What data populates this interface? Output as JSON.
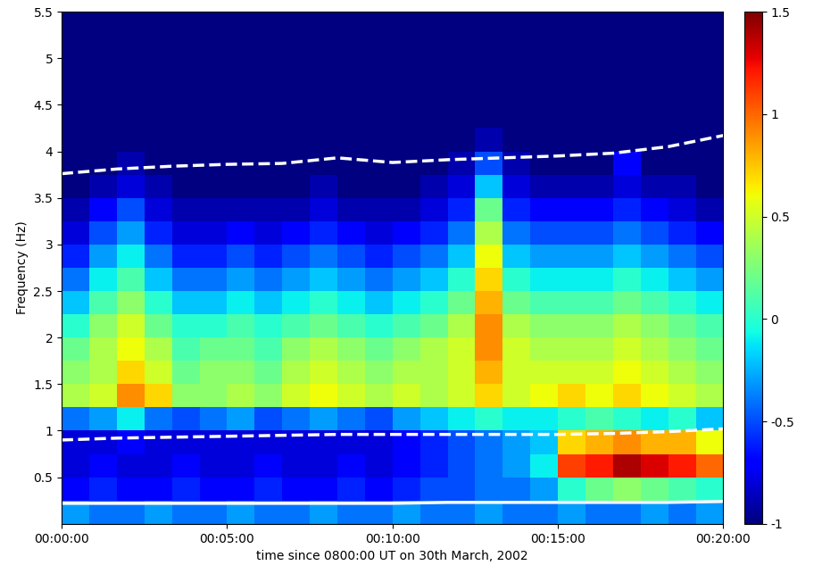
{
  "chart_data": {
    "type": "heatmap",
    "x_label": "time since 0800:00 UT on 30th March, 2002",
    "y_label": "Frequency (Hz)",
    "xlim": [
      0,
      1200
    ],
    "xticks": [
      {
        "value": 0,
        "label": "00:00:00"
      },
      {
        "value": 300,
        "label": "00:05:00"
      },
      {
        "value": 600,
        "label": "00:10:00"
      },
      {
        "value": 900,
        "label": "00:15:00"
      },
      {
        "value": 1200,
        "label": "00:20:00"
      }
    ],
    "ylim": [
      0,
      5.5
    ],
    "yticks": [
      0.5,
      1,
      1.5,
      2,
      2.5,
      3,
      3.5,
      4,
      4.5,
      5,
      5.5
    ],
    "time_edges": [
      0,
      50,
      100,
      150,
      200,
      250,
      300,
      350,
      400,
      450,
      500,
      550,
      600,
      650,
      700,
      750,
      800,
      850,
      900,
      950,
      1000,
      1050,
      1100,
      1150,
      1200
    ],
    "frequency_edges": [
      0,
      0.25,
      0.5,
      0.75,
      1,
      1.25,
      1.5,
      1.75,
      2,
      2.25,
      2.5,
      2.75,
      3,
      3.25,
      3.5,
      3.75,
      4,
      4.25,
      4.5,
      4.75,
      5,
      5.25,
      5.5
    ],
    "cells": [
      [
        -0.3,
        -0.4,
        -0.4,
        -0.3,
        -0.4,
        -0.4,
        -0.3,
        -0.4,
        -0.4,
        -0.3,
        -0.4,
        -0.4,
        -0.3,
        -0.4,
        -0.4,
        -0.3,
        -0.4,
        -0.4,
        -0.3,
        -0.4,
        -0.4,
        -0.3,
        -0.4,
        -0.3
      ],
      [
        -0.7,
        -0.6,
        -0.7,
        -0.7,
        -0.6,
        -0.7,
        -0.7,
        -0.6,
        -0.7,
        -0.7,
        -0.6,
        -0.7,
        -0.6,
        -0.5,
        -0.5,
        -0.4,
        -0.4,
        -0.3,
        0.0,
        0.2,
        0.3,
        0.2,
        0.1,
        0.0
      ],
      [
        -0.8,
        -0.7,
        -0.8,
        -0.8,
        -0.7,
        -0.8,
        -0.8,
        -0.7,
        -0.8,
        -0.8,
        -0.7,
        -0.8,
        -0.7,
        -0.6,
        -0.5,
        -0.4,
        -0.3,
        -0.1,
        1.1,
        1.2,
        1.4,
        1.3,
        1.2,
        1.0
      ],
      [
        -0.8,
        -0.8,
        -0.7,
        -0.8,
        -0.8,
        -0.8,
        -0.8,
        -0.8,
        -0.8,
        -0.8,
        -0.8,
        -0.8,
        -0.7,
        -0.6,
        -0.5,
        -0.4,
        -0.3,
        -0.2,
        0.7,
        0.8,
        0.9,
        0.8,
        0.8,
        0.6
      ],
      [
        -0.4,
        -0.3,
        -0.1,
        -0.4,
        -0.5,
        -0.4,
        -0.3,
        -0.5,
        -0.4,
        -0.3,
        -0.4,
        -0.5,
        -0.3,
        -0.2,
        -0.1,
        0.0,
        -0.1,
        -0.1,
        0.0,
        0.1,
        0.0,
        -0.1,
        0.0,
        -0.2
      ],
      [
        0.4,
        0.5,
        0.9,
        0.7,
        0.3,
        0.3,
        0.4,
        0.3,
        0.5,
        0.6,
        0.5,
        0.4,
        0.5,
        0.4,
        0.5,
        0.7,
        0.5,
        0.6,
        0.7,
        0.6,
        0.7,
        0.6,
        0.5,
        0.4
      ],
      [
        0.3,
        0.4,
        0.7,
        0.5,
        0.2,
        0.3,
        0.3,
        0.2,
        0.4,
        0.5,
        0.4,
        0.3,
        0.4,
        0.4,
        0.5,
        0.8,
        0.5,
        0.5,
        0.5,
        0.5,
        0.6,
        0.5,
        0.4,
        0.3
      ],
      [
        0.2,
        0.4,
        0.6,
        0.4,
        0.1,
        0.2,
        0.2,
        0.1,
        0.3,
        0.4,
        0.3,
        0.2,
        0.3,
        0.4,
        0.5,
        0.9,
        0.5,
        0.4,
        0.4,
        0.4,
        0.5,
        0.4,
        0.3,
        0.2
      ],
      [
        0.0,
        0.3,
        0.5,
        0.2,
        0.0,
        0.0,
        0.1,
        0.0,
        0.1,
        0.2,
        0.1,
        0.0,
        0.1,
        0.2,
        0.4,
        0.9,
        0.4,
        0.3,
        0.3,
        0.3,
        0.4,
        0.3,
        0.2,
        0.1
      ],
      [
        -0.2,
        0.1,
        0.3,
        0.0,
        -0.2,
        -0.2,
        -0.1,
        -0.2,
        -0.1,
        0.0,
        -0.1,
        -0.2,
        -0.1,
        0.0,
        0.2,
        0.8,
        0.2,
        0.1,
        0.1,
        0.1,
        0.2,
        0.1,
        0.0,
        -0.1
      ],
      [
        -0.4,
        -0.1,
        0.1,
        -0.2,
        -0.4,
        -0.4,
        -0.3,
        -0.4,
        -0.3,
        -0.2,
        -0.3,
        -0.4,
        -0.3,
        -0.2,
        0.0,
        0.7,
        0.0,
        -0.1,
        -0.1,
        -0.1,
        0.0,
        -0.1,
        -0.2,
        -0.3
      ],
      [
        -0.6,
        -0.3,
        -0.1,
        -0.4,
        -0.6,
        -0.6,
        -0.5,
        -0.6,
        -0.5,
        -0.4,
        -0.5,
        -0.6,
        -0.5,
        -0.4,
        -0.2,
        0.6,
        -0.2,
        -0.3,
        -0.3,
        -0.3,
        -0.2,
        -0.3,
        -0.4,
        -0.5
      ],
      [
        -0.8,
        -0.5,
        -0.3,
        -0.6,
        -0.8,
        -0.8,
        -0.7,
        -0.8,
        -0.7,
        -0.6,
        -0.7,
        -0.8,
        -0.7,
        -0.6,
        -0.4,
        0.4,
        -0.4,
        -0.5,
        -0.5,
        -0.5,
        -0.4,
        -0.5,
        -0.6,
        -0.7
      ],
      [
        -0.9,
        -0.7,
        -0.5,
        -0.8,
        -0.9,
        -0.9,
        -0.9,
        -0.9,
        -0.9,
        -0.8,
        -0.9,
        -0.9,
        -0.9,
        -0.8,
        -0.6,
        0.2,
        -0.6,
        -0.7,
        -0.7,
        -0.7,
        -0.6,
        -0.7,
        -0.8,
        -0.9
      ],
      [
        -1.0,
        -0.9,
        -0.8,
        -0.9,
        -1.0,
        -1.0,
        -1.0,
        -1.0,
        -1.0,
        -0.9,
        -1.0,
        -1.0,
        -1.0,
        -0.9,
        -0.8,
        -0.2,
        -0.8,
        -0.9,
        -0.9,
        -0.9,
        -0.8,
        -0.9,
        -0.9,
        -1.0
      ],
      [
        -1.0,
        -1.0,
        -0.9,
        -1.0,
        -1.0,
        -1.0,
        -1.0,
        -1.0,
        -1.0,
        -1.0,
        -1.0,
        -1.0,
        -1.0,
        -1.0,
        -0.9,
        -0.5,
        -0.9,
        -1.0,
        -1.0,
        -1.0,
        -0.7,
        -1.0,
        -1.0,
        -1.0
      ],
      [
        -1.0,
        -1.0,
        -1.0,
        -1.0,
        -1.0,
        -1.0,
        -1.0,
        -1.0,
        -1.0,
        -1.0,
        -1.0,
        -1.0,
        -1.0,
        -1.0,
        -1.0,
        -0.9,
        -1.0,
        -1.0,
        -1.0,
        -1.0,
        -1.0,
        -1.0,
        -1.0,
        -1.0
      ],
      [
        -1.0,
        -1.0,
        -1.0,
        -1.0,
        -1.0,
        -1.0,
        -1.0,
        -1.0,
        -1.0,
        -1.0,
        -1.0,
        -1.0,
        -1.0,
        -1.0,
        -1.0,
        -1.0,
        -1.0,
        -1.0,
        -1.0,
        -1.0,
        -1.0,
        -1.0,
        -1.0,
        -1.0
      ],
      [
        -1.0,
        -1.0,
        -1.0,
        -1.0,
        -1.0,
        -1.0,
        -1.0,
        -1.0,
        -1.0,
        -1.0,
        -1.0,
        -1.0,
        -1.0,
        -1.0,
        -1.0,
        -1.0,
        -1.0,
        -1.0,
        -1.0,
        -1.0,
        -1.0,
        -1.0,
        -1.0,
        -1.0
      ],
      [
        -1.0,
        -1.0,
        -1.0,
        -1.0,
        -1.0,
        -1.0,
        -1.0,
        -1.0,
        -1.0,
        -1.0,
        -1.0,
        -1.0,
        -1.0,
        -1.0,
        -1.0,
        -1.0,
        -1.0,
        -1.0,
        -1.0,
        -1.0,
        -1.0,
        -1.0,
        -1.0,
        -1.0
      ],
      [
        -1.0,
        -1.0,
        -1.0,
        -1.0,
        -1.0,
        -1.0,
        -1.0,
        -1.0,
        -1.0,
        -1.0,
        -1.0,
        -1.0,
        -1.0,
        -1.0,
        -1.0,
        -1.0,
        -1.0,
        -1.0,
        -1.0,
        -1.0,
        -1.0,
        -1.0,
        -1.0,
        -1.0
      ],
      [
        -1.0,
        -1.0,
        -1.0,
        -1.0,
        -1.0,
        -1.0,
        -1.0,
        -1.0,
        -1.0,
        -1.0,
        -1.0,
        -1.0,
        -1.0,
        -1.0,
        -1.0,
        -1.0,
        -1.0,
        -1.0,
        -1.0,
        -1.0,
        -1.0,
        -1.0,
        -1.0,
        -1.0
      ]
    ],
    "colorbar": {
      "range": [
        -1,
        1.5
      ],
      "ticks": [
        -1,
        -0.5,
        0,
        0.5,
        1,
        1.5
      ]
    },
    "x": [
      0,
      100,
      200,
      300,
      400,
      500,
      600,
      700,
      800,
      900,
      1000,
      1100,
      1200
    ],
    "series": [
      {
        "color": "#ffffff",
        "line_style": "dashed",
        "values": [
          3.76,
          3.81,
          3.84,
          3.86,
          3.87,
          3.93,
          3.88,
          3.91,
          3.93,
          3.95,
          3.98,
          4.05,
          4.17
        ]
      },
      {
        "color": "#ffffff",
        "line_style": "dashed",
        "values": [
          0.9,
          0.92,
          0.93,
          0.94,
          0.95,
          0.96,
          0.96,
          0.96,
          0.96,
          0.96,
          0.97,
          0.99,
          1.02
        ]
      },
      {
        "color": "#ffffff",
        "line_style": "solid",
        "values": [
          0.22,
          0.22,
          0.22,
          0.22,
          0.22,
          0.22,
          0.22,
          0.23,
          0.23,
          0.23,
          0.23,
          0.23,
          0.24
        ]
      }
    ]
  }
}
